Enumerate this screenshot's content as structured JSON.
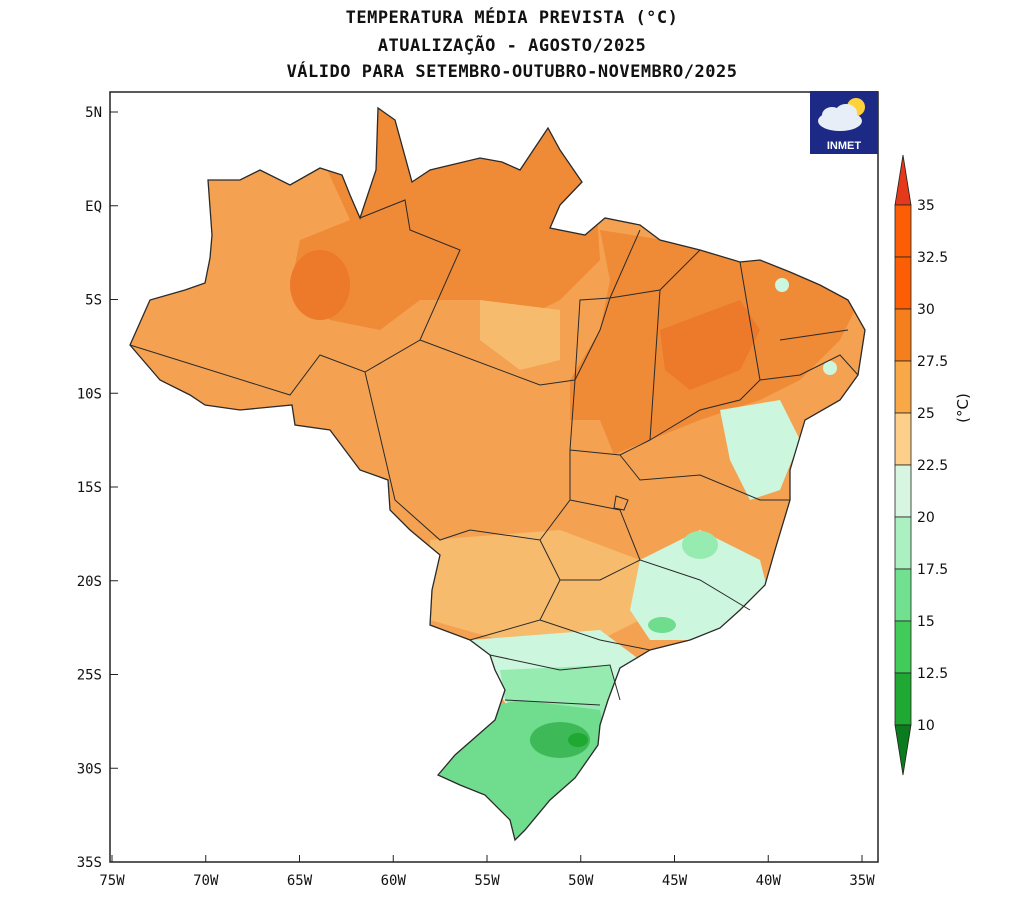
{
  "titles": {
    "line1": "TEMPERATURA MÉDIA PREVISTA (°C)",
    "line2": "ATUALIZAÇÃO - AGOSTO/2025",
    "line3": "VÁLIDO PARA SETEMBRO-OUTUBRO-NOVEMBRO/2025"
  },
  "logo": {
    "text": "INMET",
    "icon": "cloud-sun-icon"
  },
  "axes": {
    "y_ticks": [
      "5N",
      "EQ",
      "5S",
      "10S",
      "15S",
      "20S",
      "25S",
      "30S",
      "35S"
    ],
    "x_ticks": [
      "75W",
      "70W",
      "65W",
      "60W",
      "55W",
      "50W",
      "45W",
      "40W",
      "35W"
    ]
  },
  "colorbar": {
    "unit": "(°C)",
    "ticks": [
      "35",
      "32.5",
      "30",
      "27.5",
      "25",
      "22.5",
      "20",
      "17.5",
      "15",
      "12.5",
      "10"
    ],
    "colors": [
      "#e4391b",
      "#fb5e05",
      "#f47f1c",
      "#f9a848",
      "#fcd08b",
      "#d8f5e2",
      "#aaf0c1",
      "#71e190",
      "#41cc5a",
      "#1fa932",
      "#0b7c1d"
    ]
  },
  "regions_colors": {
    "warm_orange": "#f4a252",
    "dark_orange": "#ef8a36",
    "hot_orange": "#ec7a2a",
    "light_orange": "#f7bb6e",
    "pale_green": "#cdf6de",
    "light_green": "#96ebb1",
    "mid_green": "#6fdc8e",
    "dark_green": "#3db958"
  }
}
